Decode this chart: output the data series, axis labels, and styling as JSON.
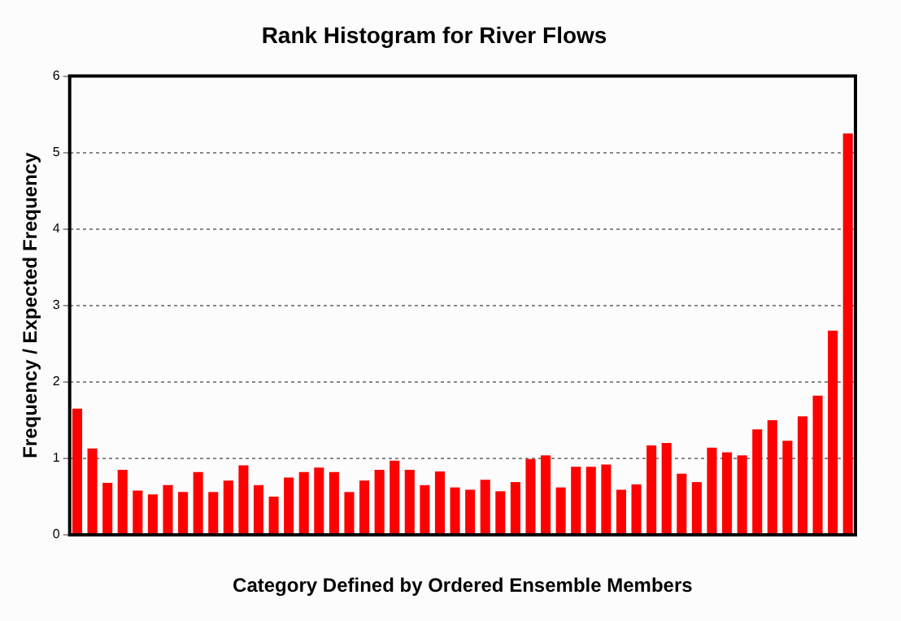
{
  "chart_data": {
    "type": "bar",
    "title": "Rank Histogram for River Flows",
    "xlabel": "Category Defined by Ordered Ensemble Members",
    "ylabel": "Frequency / Expected Frequency",
    "categories": [
      null,
      null,
      null,
      null,
      null,
      null,
      null,
      null,
      null,
      null,
      null,
      null,
      null,
      null,
      null,
      null,
      null,
      null,
      null,
      null,
      null,
      null,
      null,
      null,
      null,
      null,
      null,
      null,
      null,
      null,
      null,
      null,
      null,
      null,
      null,
      null,
      null,
      null,
      null,
      null,
      null,
      null,
      null,
      null,
      null,
      null,
      null,
      null,
      null,
      null,
      null,
      null
    ],
    "values": [
      1.65,
      1.13,
      0.68,
      0.85,
      0.58,
      0.53,
      0.65,
      0.56,
      0.82,
      0.56,
      0.71,
      0.91,
      0.65,
      0.5,
      0.75,
      0.82,
      0.88,
      0.82,
      0.56,
      0.71,
      0.85,
      0.97,
      0.85,
      0.65,
      0.83,
      0.62,
      0.59,
      0.72,
      0.57,
      0.69,
      0.99,
      1.04,
      0.62,
      0.89,
      0.89,
      0.92,
      0.59,
      0.66,
      1.17,
      1.2,
      0.8,
      0.69,
      1.14,
      1.08,
      1.04,
      1.38,
      1.5,
      1.23,
      1.55,
      1.82,
      2.67,
      5.25
    ],
    "color": "#ff0000",
    "ylim": [
      0,
      6
    ],
    "yticks": [
      0,
      1,
      2,
      3,
      4,
      5,
      6
    ],
    "grid": "y",
    "legend": false
  }
}
